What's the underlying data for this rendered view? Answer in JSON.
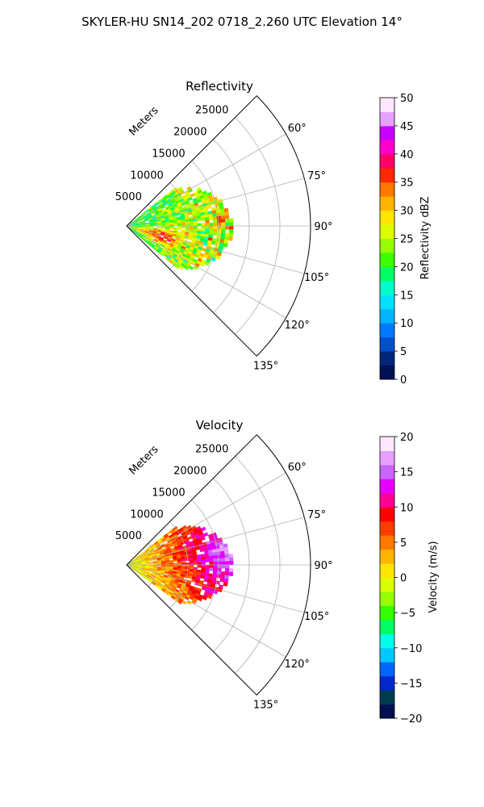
{
  "figure": {
    "title": "SKYLER-HU  SN14_202  0718_2.260 UTC Elevation 14°"
  },
  "chart_data": [
    {
      "type": "polar-sector",
      "title": "Reflectivity",
      "radial_label": "Meters",
      "radial_ticks": [
        "5000",
        "10000",
        "15000",
        "20000",
        "25000"
      ],
      "radial_values": [
        5000,
        10000,
        15000,
        20000,
        25000
      ],
      "rmax": 30000,
      "angle_range": [
        45,
        135
      ],
      "angle_ticks": [
        "60°",
        "75°",
        "90°",
        "105°",
        "120°",
        "135°"
      ],
      "angle_values": [
        60,
        75,
        90,
        105,
        120,
        135
      ],
      "data_extent": {
        "az_min": 52,
        "az_max": 130,
        "r_max": 17000
      },
      "colorbar": {
        "label": "Reflectivity dBZ",
        "vmin": 0,
        "vmax": 50,
        "ticks": [
          "0",
          "5",
          "10",
          "15",
          "20",
          "25",
          "30",
          "35",
          "40",
          "45",
          "50"
        ],
        "tick_values": [
          0,
          5,
          10,
          15,
          20,
          25,
          30,
          35,
          40,
          45,
          50
        ],
        "colors": [
          "#001050",
          "#002878",
          "#0050c8",
          "#0078ff",
          "#00b4ff",
          "#00e0ff",
          "#00ffc8",
          "#00ff64",
          "#3cff00",
          "#96ff00",
          "#dcff00",
          "#ffe600",
          "#ffb400",
          "#ff7800",
          "#ff2800",
          "#ff0064",
          "#ff00c8",
          "#c800ff",
          "#e6a0ff",
          "#ffe6ff"
        ]
      }
    },
    {
      "type": "polar-sector",
      "title": "Velocity",
      "radial_label": "Meters",
      "radial_ticks": [
        "5000",
        "10000",
        "15000",
        "20000",
        "25000"
      ],
      "radial_values": [
        5000,
        10000,
        15000,
        20000,
        25000
      ],
      "rmax": 30000,
      "angle_range": [
        45,
        135
      ],
      "angle_ticks": [
        "60°",
        "75°",
        "90°",
        "105°",
        "120°",
        "135°"
      ],
      "angle_values": [
        60,
        75,
        90,
        105,
        120,
        135
      ],
      "data_extent": {
        "az_min": 52,
        "az_max": 125,
        "r_max": 17000
      },
      "colorbar": {
        "label": "Velocity (m/s)",
        "vmin": -20,
        "vmax": 20,
        "ticks": [
          "−20",
          "−15",
          "−10",
          "−5",
          "0",
          "5",
          "10",
          "15",
          "20"
        ],
        "tick_values": [
          -20,
          -15,
          -10,
          -5,
          0,
          5,
          10,
          15,
          20
        ],
        "colors": [
          "#001050",
          "#003c50",
          "#0028c8",
          "#0064ff",
          "#00c8ff",
          "#00ffe6",
          "#00ff64",
          "#32ff00",
          "#96ff00",
          "#dcff00",
          "#ffe600",
          "#ffb400",
          "#ff7800",
          "#ff3c00",
          "#ff0000",
          "#ff0096",
          "#e600ff",
          "#c864ff",
          "#e6a0ff",
          "#ffe6ff"
        ]
      }
    }
  ]
}
